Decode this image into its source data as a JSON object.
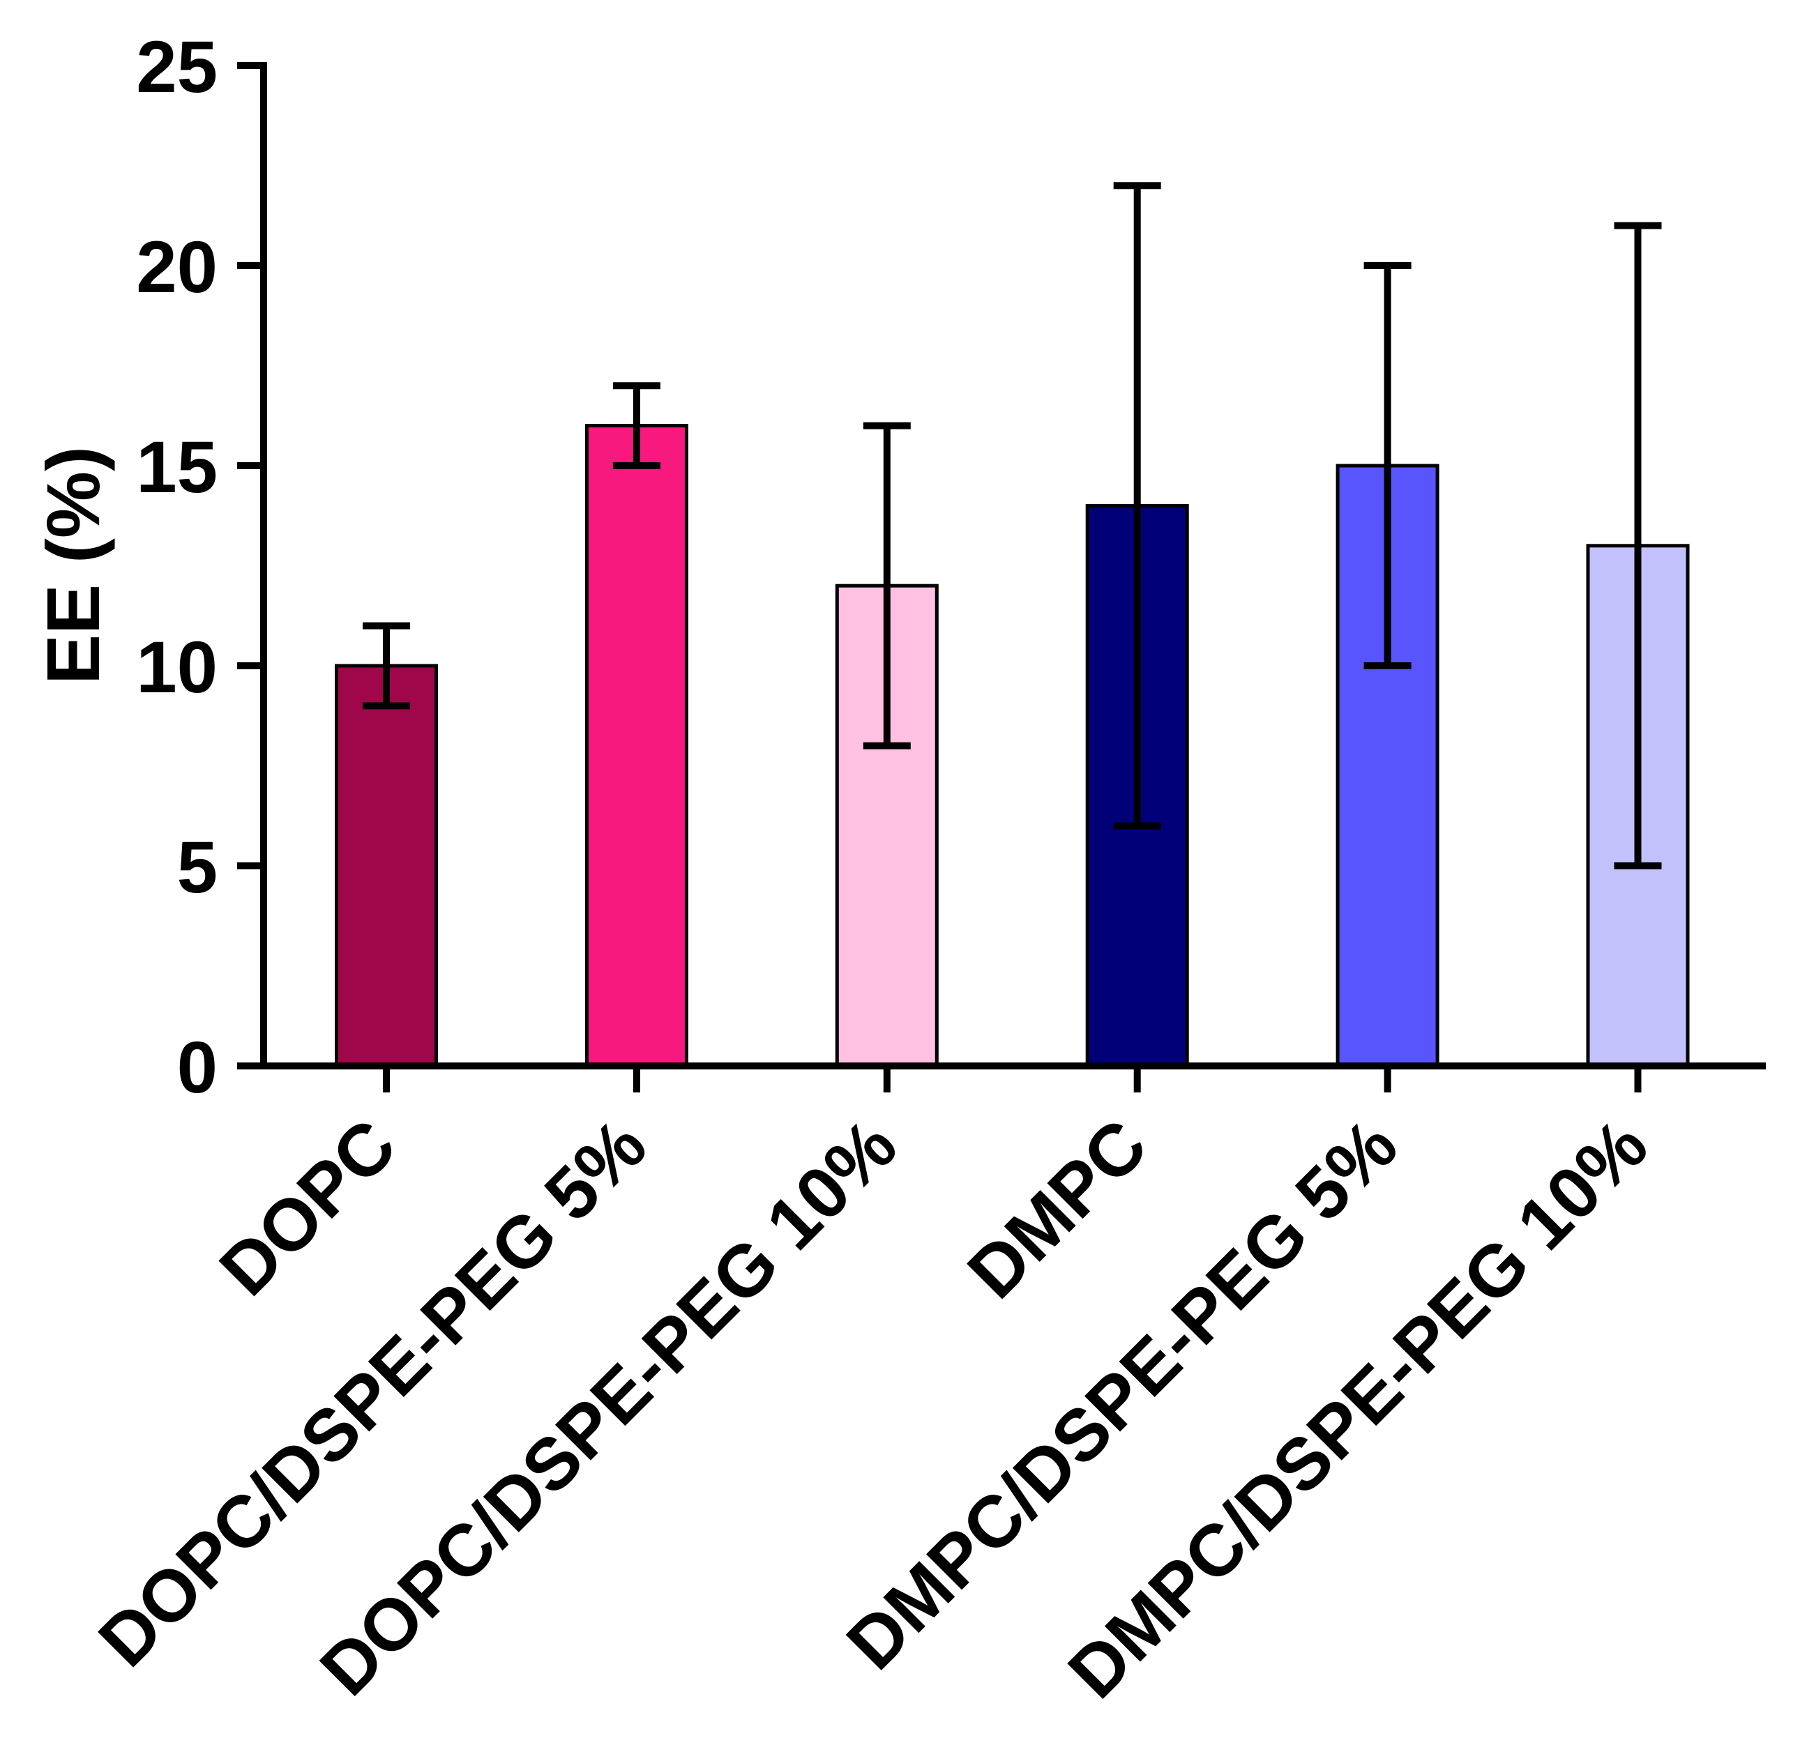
{
  "chart_data": {
    "type": "bar",
    "ylabel": "EE (%)",
    "categories": [
      "DOPC",
      "DOPC/DSPE-PEG 5%",
      "DOPC/DSPE-PEG 10%",
      "DMPC",
      "DMPC/DSPE-PEG 5%",
      "DMPC/DSPE-PEG 10%"
    ],
    "values": [
      10,
      16,
      12,
      14,
      15,
      13
    ],
    "errors": [
      1,
      1,
      4,
      8,
      5,
      8
    ],
    "colors": [
      "#A0064A",
      "#F8197F",
      "#FFC1E1",
      "#020078",
      "#5755FB",
      "#C3C1FC"
    ],
    "ylim": [
      0,
      25
    ],
    "yticks": [
      0,
      5,
      10,
      15,
      20,
      25
    ],
    "grid": false
  }
}
